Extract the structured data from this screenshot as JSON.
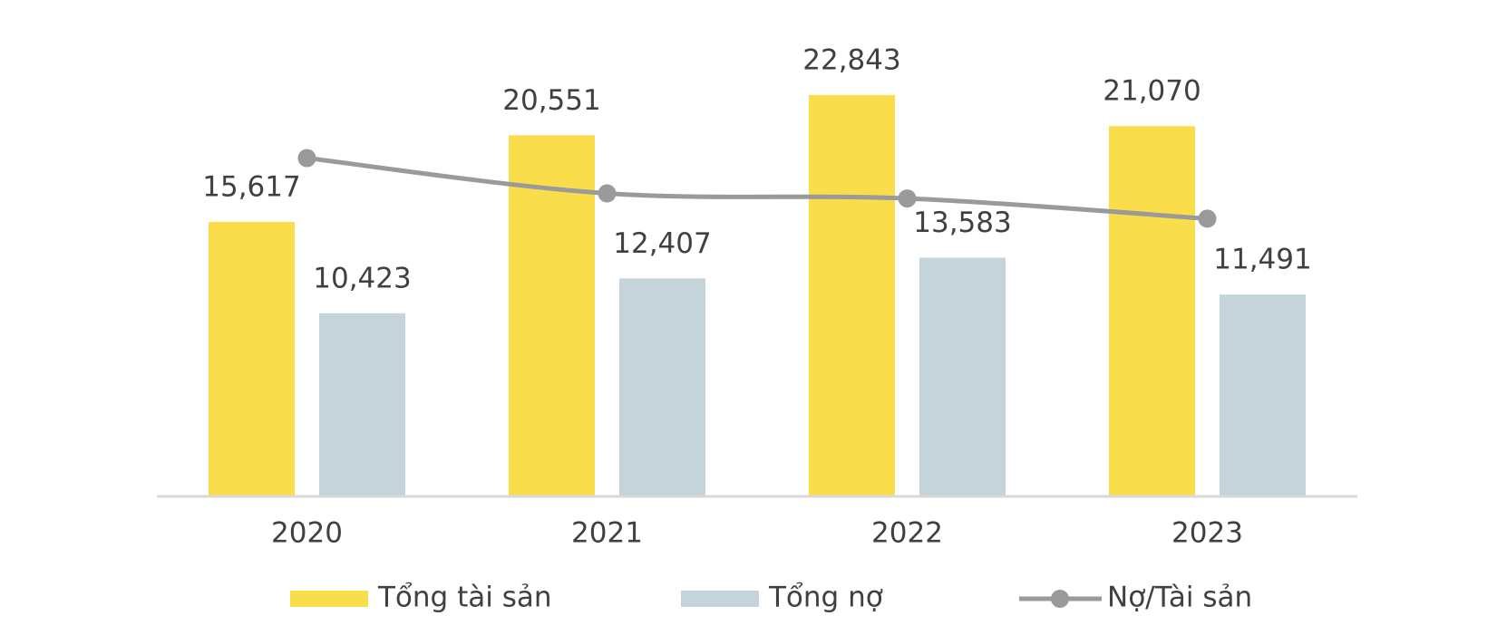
{
  "chart_data": {
    "type": "bar",
    "categories": [
      "2020",
      "2021",
      "2022",
      "2023"
    ],
    "series": [
      {
        "name": "Tổng tài sản",
        "color": "#f9dd4a",
        "values": [
          15617,
          20551,
          22843,
          21070
        ],
        "value_labels": [
          "15,617",
          "20,551",
          "22,843",
          "21,070"
        ]
      },
      {
        "name": "Tổng nợ",
        "color": "#c4d4da",
        "values": [
          10423,
          12407,
          13583,
          11491
        ],
        "value_labels": [
          "10,423",
          "12,407",
          "13,583",
          "11,491"
        ]
      },
      {
        "name": "Nợ/Tài sản",
        "type": "line",
        "axis": "y2",
        "color": "#9a9a9a",
        "values": [
          0.67,
          0.6,
          0.59,
          0.55
        ]
      }
    ],
    "ylim": [
      0,
      25000
    ],
    "y2lim": [
      0,
      0.87
    ],
    "legend": "bottom"
  }
}
